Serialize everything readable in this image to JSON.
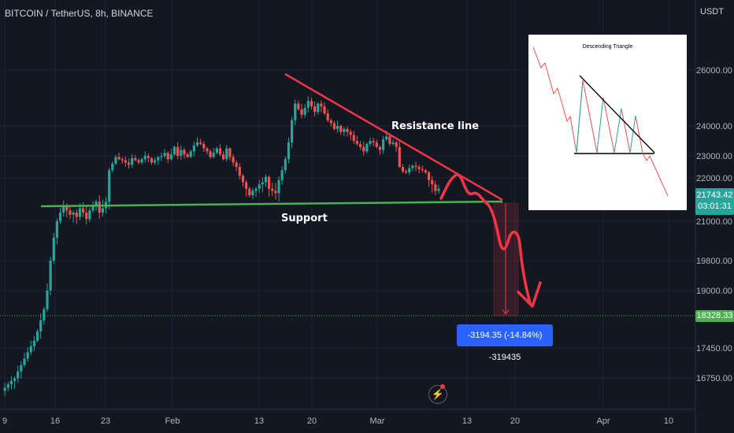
{
  "header": {
    "symbol": "BITCOIN / TetherUS, 8h, BINANCE"
  },
  "price_axis": {
    "unit": "USDT"
  },
  "tags": {
    "current_price": "21743.42",
    "countdown": "03:01:31",
    "target_price": "18328.33"
  },
  "measure_label": "-3194.35 (-14.84%) -319435",
  "inset": {
    "title": "Descending Triangle"
  },
  "colors": {
    "background": "#131722",
    "up": "#26a69a",
    "down": "#ef5350",
    "annotation_red": "#f23645",
    "support_green": "#4caf50",
    "measure_blue": "#2962ff"
  },
  "chart_data": {
    "type": "candlestick",
    "timeframe": "8h",
    "y_axis_ticks": [
      26000,
      24000,
      23000,
      22000,
      21000,
      19800,
      19000,
      17450,
      16750
    ],
    "x_axis_ticks": [
      "9",
      "16",
      "23",
      "Feb",
      "13",
      "20",
      "Mar",
      "13",
      "20",
      "Apr",
      "10"
    ],
    "ohlc_series_approx": [
      16450,
      16520,
      16600,
      16680,
      16740,
      16900,
      17050,
      17200,
      17350,
      17500,
      17650,
      17900,
      18200,
      18500,
      19000,
      19800,
      20500,
      21000,
      21200,
      21350,
      21250,
      21150,
      21200,
      21100,
      21300,
      21200,
      21050,
      21250,
      21350,
      21450,
      21200,
      21300,
      21450,
      22350,
      22650,
      22950,
      22850,
      22800,
      22700,
      22600,
      22900,
      22800,
      22700,
      22850,
      23000,
      22900,
      22700,
      22800,
      22950,
      23000,
      23100,
      22850,
      23050,
      23300,
      23000,
      23200,
      23050,
      22950,
      23150,
      23350,
      23450,
      23400,
      23250,
      23150,
      22950,
      23100,
      23250,
      23050,
      22850,
      23250,
      22950,
      22700,
      22500,
      22100,
      21900,
      21750,
      21600,
      21700,
      21750,
      21850,
      21900,
      22050,
      21750,
      21700,
      21650,
      21950,
      22350,
      22850,
      23450,
      24200,
      24800,
      24600,
      24400,
      24650,
      24900,
      24700,
      24500,
      24800,
      24700,
      24450,
      24200,
      24100,
      23900,
      24000,
      23800,
      23900,
      23800,
      23700,
      23500,
      23400,
      23300,
      23150,
      23400,
      23500,
      23450,
      23300,
      23200,
      23550,
      23650,
      23400,
      23450,
      23300,
      22500,
      22300,
      22250,
      22450,
      22550,
      22500,
      22400,
      22350,
      22250,
      21950,
      21850,
      21700,
      21750
    ],
    "annotations": {
      "resistance_label": "Resistance line",
      "support_label": "Support",
      "resistance_start": 26150,
      "resistance_end": 21800,
      "support_level": 21700,
      "current_price": 21743.42,
      "target_price": 18328.33,
      "measured_change": -3194.35,
      "measured_change_pct": -14.84
    }
  }
}
